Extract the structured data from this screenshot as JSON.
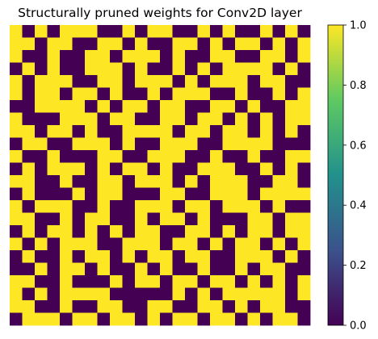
{
  "chart_data": {
    "type": "heatmap",
    "title": "Structurally pruned weights for Conv2D layer",
    "colormap": "viridis",
    "colormap_stops": [
      "#440154",
      "#3b528b",
      "#21918c",
      "#5ec962",
      "#fde725"
    ],
    "vmin": 0.0,
    "vmax": 1.0,
    "colorbar_ticks": [
      "0.0",
      "0.2",
      "0.4",
      "0.6",
      "0.8",
      "1.0"
    ],
    "n_rows": 24,
    "n_cols": 24,
    "values": [
      [
        1,
        0,
        1,
        0,
        1,
        1,
        1,
        0,
        0,
        1,
        0,
        1,
        1,
        0,
        0,
        1,
        0,
        1,
        0,
        0,
        1,
        0,
        1,
        0
      ],
      [
        1,
        1,
        0,
        1,
        1,
        0,
        0,
        1,
        1,
        0,
        1,
        0,
        0,
        1,
        1,
        0,
        1,
        0,
        1,
        1,
        0,
        1,
        0,
        1
      ],
      [
        1,
        0,
        0,
        1,
        0,
        0,
        1,
        1,
        0,
        1,
        1,
        1,
        0,
        1,
        0,
        0,
        1,
        1,
        0,
        0,
        1,
        1,
        0,
        1
      ],
      [
        0,
        1,
        0,
        1,
        0,
        0,
        1,
        1,
        1,
        0,
        1,
        0,
        0,
        1,
        0,
        1,
        0,
        1,
        1,
        1,
        1,
        0,
        1,
        0
      ],
      [
        1,
        0,
        1,
        1,
        1,
        0,
        0,
        1,
        1,
        0,
        1,
        1,
        1,
        0,
        1,
        0,
        1,
        1,
        1,
        0,
        1,
        1,
        0,
        0
      ],
      [
        1,
        0,
        1,
        1,
        0,
        1,
        1,
        0,
        1,
        0,
        0,
        1,
        0,
        1,
        1,
        1,
        0,
        0,
        1,
        0,
        0,
        1,
        0,
        1
      ],
      [
        0,
        0,
        1,
        1,
        1,
        1,
        0,
        1,
        0,
        1,
        1,
        0,
        1,
        1,
        0,
        0,
        1,
        1,
        0,
        1,
        0,
        0,
        1,
        1
      ],
      [
        1,
        0,
        0,
        0,
        1,
        1,
        1,
        0,
        1,
        1,
        0,
        0,
        1,
        1,
        0,
        1,
        1,
        0,
        1,
        0,
        1,
        0,
        1,
        1
      ],
      [
        1,
        1,
        0,
        1,
        1,
        0,
        1,
        0,
        0,
        1,
        1,
        1,
        1,
        0,
        1,
        1,
        0,
        1,
        1,
        0,
        1,
        0,
        1,
        0
      ],
      [
        0,
        1,
        1,
        0,
        0,
        1,
        1,
        1,
        0,
        1,
        0,
        0,
        1,
        1,
        1,
        0,
        0,
        1,
        1,
        1,
        1,
        0,
        0,
        0
      ],
      [
        1,
        0,
        0,
        1,
        0,
        0,
        0,
        1,
        1,
        0,
        0,
        1,
        1,
        1,
        0,
        0,
        1,
        0,
        0,
        1,
        0,
        0,
        1,
        1
      ],
      [
        0,
        1,
        0,
        1,
        1,
        1,
        0,
        1,
        0,
        1,
        1,
        0,
        1,
        0,
        0,
        1,
        1,
        1,
        0,
        0,
        1,
        0,
        1,
        0
      ],
      [
        1,
        1,
        0,
        0,
        1,
        0,
        0,
        1,
        1,
        0,
        1,
        1,
        1,
        0,
        1,
        0,
        1,
        1,
        1,
        0,
        0,
        1,
        1,
        0
      ],
      [
        0,
        1,
        0,
        0,
        0,
        1,
        0,
        1,
        1,
        0,
        0,
        0,
        1,
        1,
        0,
        0,
        1,
        1,
        1,
        0,
        1,
        1,
        1,
        1
      ],
      [
        1,
        0,
        1,
        1,
        1,
        0,
        0,
        1,
        0,
        0,
        1,
        1,
        1,
        0,
        1,
        1,
        0,
        1,
        1,
        1,
        0,
        1,
        0,
        0
      ],
      [
        1,
        1,
        0,
        0,
        1,
        0,
        1,
        1,
        0,
        0,
        1,
        0,
        1,
        1,
        0,
        1,
        0,
        0,
        0,
        1,
        1,
        0,
        1,
        1
      ],
      [
        0,
        1,
        0,
        1,
        1,
        0,
        1,
        0,
        1,
        0,
        1,
        1,
        0,
        0,
        1,
        1,
        0,
        1,
        0,
        1,
        1,
        0,
        1,
        1
      ],
      [
        1,
        0,
        1,
        0,
        1,
        1,
        1,
        0,
        0,
        1,
        1,
        1,
        0,
        1,
        1,
        0,
        1,
        0,
        1,
        1,
        0,
        1,
        0,
        1
      ],
      [
        0,
        1,
        0,
        0,
        1,
        0,
        1,
        1,
        0,
        1,
        0,
        1,
        1,
        0,
        1,
        1,
        0,
        0,
        1,
        1,
        1,
        0,
        1,
        0
      ],
      [
        0,
        0,
        1,
        0,
        1,
        1,
        0,
        1,
        0,
        0,
        1,
        0,
        1,
        0,
        0,
        1,
        0,
        0,
        1,
        0,
        1,
        1,
        0,
        0
      ],
      [
        1,
        1,
        0,
        0,
        1,
        0,
        0,
        0,
        1,
        0,
        1,
        1,
        0,
        1,
        1,
        0,
        1,
        1,
        0,
        1,
        0,
        1,
        0,
        1
      ],
      [
        1,
        0,
        1,
        0,
        1,
        1,
        1,
        1,
        0,
        0,
        0,
        0,
        0,
        1,
        0,
        1,
        0,
        1,
        1,
        1,
        1,
        1,
        0,
        1
      ],
      [
        1,
        1,
        0,
        0,
        1,
        0,
        0,
        1,
        1,
        0,
        0,
        1,
        1,
        0,
        0,
        1,
        1,
        0,
        1,
        0,
        1,
        1,
        0,
        0
      ],
      [
        0,
        1,
        1,
        1,
        0,
        1,
        1,
        0,
        1,
        1,
        0,
        1,
        0,
        1,
        1,
        0,
        1,
        1,
        0,
        1,
        0,
        1,
        1,
        0
      ]
    ]
  }
}
